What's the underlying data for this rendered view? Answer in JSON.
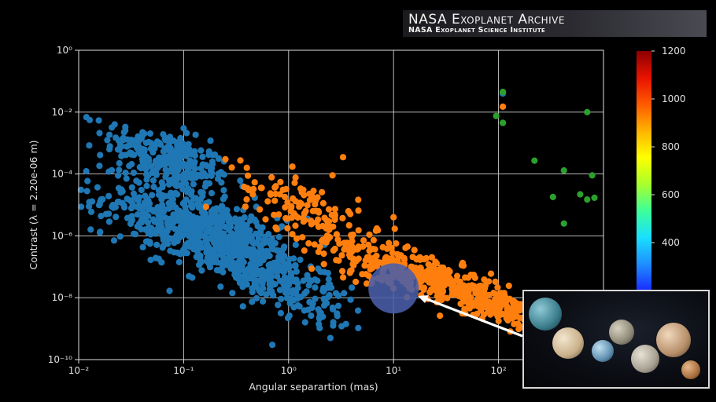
{
  "banner": {
    "title": "NASA Exoplanet Archive",
    "subtitle": "NASA Exoplanet Science Institute"
  },
  "chart_data": {
    "type": "scatter",
    "xlabel": "Angular separartion (mas)",
    "ylabel": "Contrast (λ = 2.20e-06 m)",
    "x_scale": "log",
    "y_scale": "log",
    "xlim": [
      0.01,
      1000
    ],
    "ylim": [
      1e-10,
      1
    ],
    "x_ticks": [
      "10⁻²",
      "10⁻¹",
      "10⁰",
      "10¹",
      "10²"
    ],
    "y_ticks": [
      "10⁰",
      "10⁻²",
      "10⁻⁴",
      "10⁻⁶",
      "10⁻⁸",
      "10⁻¹⁰"
    ],
    "grid": true,
    "colorbar": {
      "ticks": [
        "1200",
        "1000",
        "800",
        "600",
        "400"
      ],
      "range": [
        200,
        1200
      ],
      "colors": [
        "#1a2cff",
        "#1f8fff",
        "#19e0ff",
        "#3dff9a",
        "#a8ff2a",
        "#ffff00",
        "#ffb300",
        "#ff5a00",
        "#e81200",
        "#8b0000"
      ]
    },
    "series": [
      {
        "color": "#1f77b4",
        "clusters": [
          {
            "cx": 0.07,
            "cy": 0.0003,
            "sx": 0.3,
            "sy": 0.45,
            "n": 260
          },
          {
            "cx": 0.12,
            "cy": 2e-06,
            "sx": 0.42,
            "sy": 0.6,
            "n": 520
          },
          {
            "cx": 0.4,
            "cy": 2e-07,
            "sx": 0.35,
            "sy": 0.55,
            "n": 320
          },
          {
            "cx": 1.5,
            "cy": 1e-08,
            "sx": 0.3,
            "sy": 0.4,
            "n": 90
          }
        ],
        "points": [
          {
            "x": 0.016,
            "y": 0.00041
          },
          {
            "x": 0.022,
            "y": 0.004
          },
          {
            "x": 0.013,
            "y": 1.6e-06
          },
          {
            "x": 0.012,
            "y": 2.8e-05
          },
          {
            "x": 0.1,
            "y": 0.003
          },
          {
            "x": 3.2,
            "y": 1.2e-09
          },
          {
            "x": 2.5,
            "y": 5e-10
          },
          {
            "x": 0.7,
            "y": 3e-10
          },
          {
            "x": 110,
            "y": 0.04
          }
        ]
      },
      {
        "color": "#ff7f0e",
        "clusters": [
          {
            "cx": 1.3,
            "cy": 1e-05,
            "sx": 0.28,
            "sy": 0.5,
            "n": 110
          },
          {
            "cx": 6,
            "cy": 2e-07,
            "sx": 0.32,
            "sy": 0.4,
            "n": 170
          },
          {
            "cx": 30,
            "cy": 3e-08,
            "sx": 0.3,
            "sy": 0.32,
            "n": 260
          },
          {
            "cx": 120,
            "cy": 4e-09,
            "sx": 0.22,
            "sy": 0.28,
            "n": 150
          }
        ],
        "points": [
          {
            "x": 0.25,
            "y": 0.0003
          },
          {
            "x": 3.3,
            "y": 0.00035
          },
          {
            "x": 10,
            "y": 4e-06
          },
          {
            "x": 110,
            "y": 0.015
          }
        ]
      },
      {
        "color": "#2ca02c",
        "clusters": [],
        "points": [
          {
            "x": 110,
            "y": 0.0045
          },
          {
            "x": 95,
            "y": 0.0075
          },
          {
            "x": 110,
            "y": 0.0045
          },
          {
            "x": 110,
            "y": 0.045
          },
          {
            "x": 220,
            "y": 0.00027
          },
          {
            "x": 420,
            "y": 0.00013
          },
          {
            "x": 700,
            "y": 0.01
          },
          {
            "x": 600,
            "y": 2.2e-05
          },
          {
            "x": 780,
            "y": 9e-05
          },
          {
            "x": 700,
            "y": 1.5e-05
          },
          {
            "x": 820,
            "y": 1.7e-05
          },
          {
            "x": 330,
            "y": 1.8e-05
          },
          {
            "x": 420,
            "y": 2.5e-06
          },
          {
            "x": 110,
            "y": 0.045
          }
        ]
      }
    ],
    "highlight": {
      "x": 10,
      "y": 2e-08,
      "color": "#4a5ea8"
    }
  }
}
